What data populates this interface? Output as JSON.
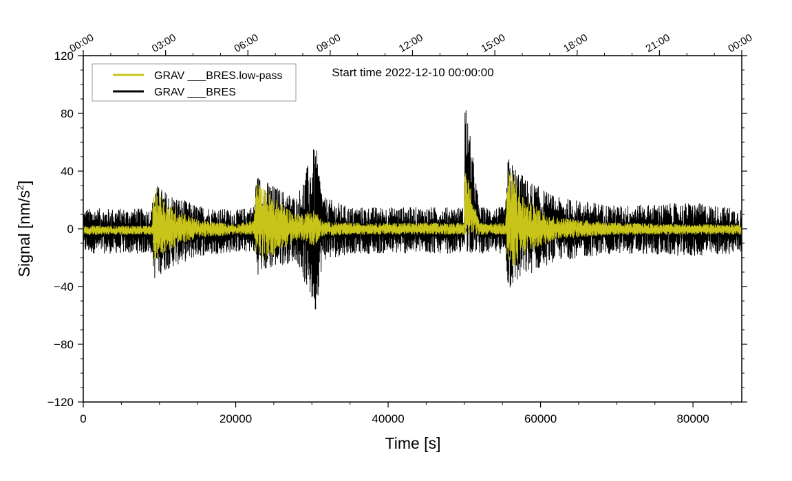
{
  "chart_data": {
    "type": "line",
    "title": "",
    "annotation": "Start time 2022-12-10 00:00:00",
    "xlabel": "Time [s]",
    "ylabel_main": "Signal [nm/s",
    "ylabel_sup": "2",
    "ylabel_end": "]",
    "xlim": [
      0,
      86400
    ],
    "ylim": [
      -120,
      120
    ],
    "x_ticks": [
      0,
      20000,
      40000,
      60000,
      80000
    ],
    "x_tick_labels": [
      "0",
      "20000",
      "40000",
      "60000",
      "80000"
    ],
    "y_ticks": [
      -120,
      -80,
      -40,
      0,
      40,
      80,
      120
    ],
    "y_tick_labels": [
      "−120",
      "−80",
      "−40",
      "0",
      "40",
      "80",
      "120"
    ],
    "top_axis_ticks": [
      0,
      10800,
      21600,
      32400,
      43200,
      54000,
      64800,
      75600,
      86400
    ],
    "top_axis_labels": [
      "00:00",
      "03:00",
      "06:00",
      "09:00",
      "12:00",
      "15:00",
      "18:00",
      "21:00",
      "00:00"
    ],
    "legend_position": "top-left",
    "series": [
      {
        "name": "GRAV ___BRES.low-pass",
        "color": "#c8c41a",
        "envelope": {
          "x": [
            0,
            9000,
            9300,
            11000,
            15000,
            20000,
            22400,
            22700,
            25000,
            28000,
            30500,
            31000,
            31500,
            35000,
            45000,
            50000,
            50100,
            52000,
            55400,
            55700,
            58000,
            62000,
            70000,
            80000,
            86400
          ],
          "upper": [
            2,
            2,
            30,
            18,
            6,
            3,
            6,
            33,
            22,
            10,
            14,
            8,
            5,
            4,
            4,
            4,
            45,
            4,
            4,
            45,
            20,
            8,
            4,
            3,
            3
          ],
          "lower": [
            -4,
            -4,
            -22,
            -15,
            -6,
            -4,
            -4,
            -22,
            -18,
            -8,
            -12,
            -6,
            -5,
            -4,
            -4,
            -4,
            -4,
            -4,
            -4,
            -30,
            -18,
            -7,
            -4,
            -4,
            -4
          ]
        }
      },
      {
        "name": "GRAV ___BRES",
        "color": "#000000",
        "envelope": {
          "x": [
            0,
            9000,
            9300,
            11000,
            15000,
            20000,
            22400,
            22700,
            25000,
            28000,
            30500,
            31000,
            31500,
            35000,
            45000,
            50000,
            50100,
            52000,
            55400,
            55700,
            58000,
            62000,
            70000,
            80000,
            86400
          ],
          "upper": [
            14,
            14,
            32,
            25,
            16,
            13,
            16,
            38,
            30,
            22,
            60,
            40,
            22,
            15,
            15,
            15,
            91,
            15,
            15,
            50,
            35,
            22,
            16,
            18,
            14
          ],
          "lower": [
            -17,
            -17,
            -35,
            -28,
            -19,
            -16,
            -16,
            -32,
            -27,
            -22,
            -60,
            -35,
            -22,
            -17,
            -17,
            -17,
            -17,
            -17,
            -17,
            -44,
            -33,
            -22,
            -17,
            -19,
            -17
          ]
        }
      }
    ]
  }
}
